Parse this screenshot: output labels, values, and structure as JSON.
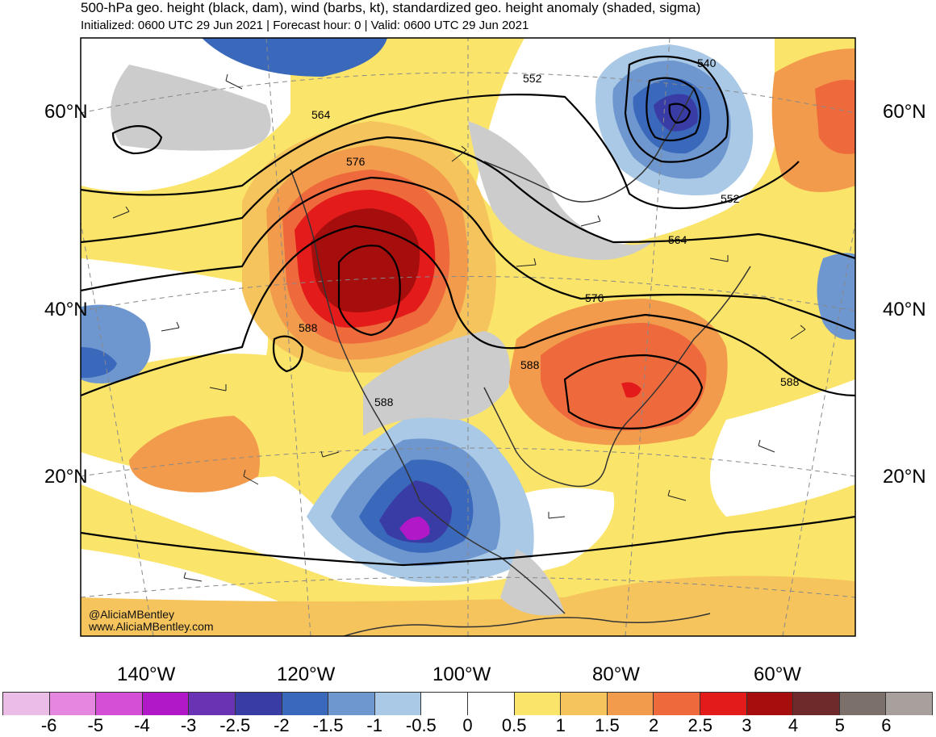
{
  "header": {
    "title": "500-hPa geo. height (black, dam), wind (barbs, kt), standardized geo. height anomaly (shaded, sigma)",
    "subtitle": "Initialized: 0600 UTC 29 Jun 2021 | Forecast hour: 0 | Valid: 0600 UTC 29 Jun 2021"
  },
  "map": {
    "lat_labels": [
      "60°N",
      "40°N",
      "20°N"
    ],
    "lon_labels": [
      "140°W",
      "120°W",
      "100°W",
      "80°W",
      "60°W"
    ],
    "contour_labels": [
      "552",
      "564",
      "576",
      "588",
      "540",
      "552",
      "564",
      "576",
      "588",
      "588",
      "588"
    ],
    "features": {
      "ridge": "positive height anomaly centered over Pacific Northwest",
      "trough": "negative height anomaly over Mexico and Labrador"
    }
  },
  "credits": {
    "handle": "@AliciaMBentley",
    "website": "www.AliciaMBentley.com"
  },
  "colorbar": {
    "labels": [
      "-6",
      "-5",
      "-4",
      "-3",
      "-2.5",
      "-2",
      "-1.5",
      "-1",
      "-0.5",
      "0",
      "0.5",
      "1",
      "1.5",
      "2",
      "2.5",
      "3",
      "4",
      "5",
      "6"
    ],
    "colors": [
      "#ebbde6",
      "#e587e0",
      "#d44fd5",
      "#b018c8",
      "#6a33b3",
      "#3a3ca6",
      "#3a68bb",
      "#6f97cf",
      "#a9c9e6",
      "#ffffff",
      "#ffffff",
      "#fbe46a",
      "#f5c45d",
      "#f39b4c",
      "#ee6a3c",
      "#e41b1b",
      "#a60d0d",
      "#6e2a2a",
      "#7c706b",
      "#a7a09d"
    ]
  }
}
